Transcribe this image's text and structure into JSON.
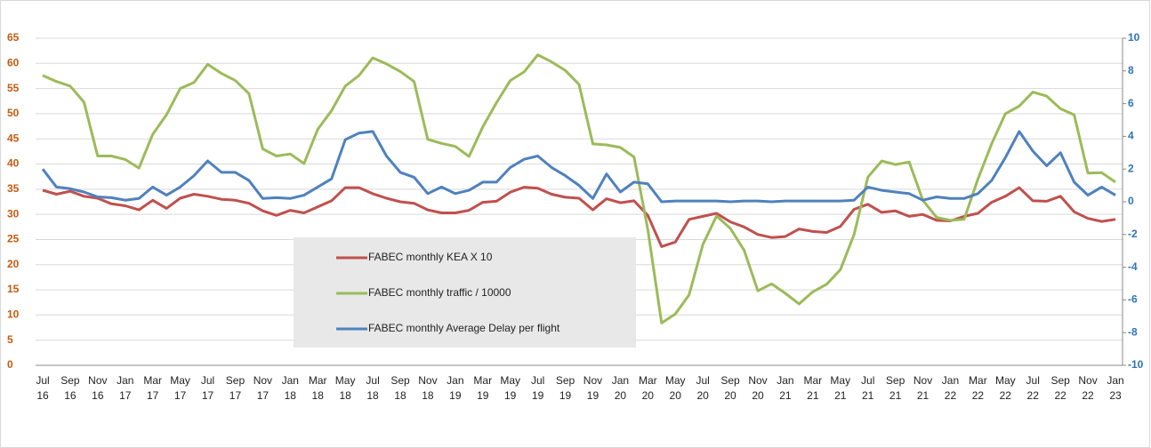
{
  "chart_data": {
    "type": "line",
    "categories": [
      "Jul 16",
      null,
      "Sep 16",
      null,
      "Nov 16",
      null,
      "Jan 17",
      null,
      "Mar 17",
      null,
      "May 17",
      null,
      "Jul 17",
      null,
      "Sep 17",
      null,
      "Nov 17",
      null,
      "Jan 18",
      null,
      "Mar 18",
      null,
      "May 18",
      null,
      "Jul 18",
      null,
      "Sep 18",
      null,
      "Nov 18",
      null,
      "Jan 19",
      null,
      "Mar 19",
      null,
      "May 19",
      null,
      "Jul 19",
      null,
      "Sep 19",
      null,
      "Nov 19",
      null,
      "Jan 20",
      null,
      "Mar 20",
      null,
      "May 20",
      null,
      "Jul 20",
      null,
      "Sep 20",
      null,
      "Nov 20",
      null,
      "Jan 21",
      null,
      "Mar 21",
      null,
      "May 21",
      null,
      "Jul 21",
      null,
      "Sep 21",
      null,
      "Nov 21",
      null,
      "Jan 22",
      null,
      "Mar 22",
      null,
      "May 22",
      null,
      "Jul 22",
      null,
      "Sep 22",
      null,
      "Nov 22",
      null,
      "Jan 23"
    ],
    "series": [
      {
        "name": "FABEC monthly KEA X 10",
        "color": "#c0504d",
        "values": [
          34.8,
          34.0,
          34.6,
          33.6,
          33.2,
          32.1,
          31.7,
          30.9,
          32.8,
          31.2,
          33.2,
          34.0,
          33.6,
          33.0,
          32.8,
          32.2,
          30.7,
          29.8,
          30.8,
          30.3,
          31.5,
          32.7,
          35.3,
          35.3,
          34.1,
          33.2,
          32.5,
          32.2,
          30.9,
          30.3,
          30.3,
          30.8,
          32.4,
          32.6,
          34.4,
          35.4,
          35.2,
          34.0,
          33.4,
          33.2,
          30.9,
          33.1,
          32.3,
          32.7,
          29.8,
          23.6,
          24.5,
          29.0,
          29.6,
          30.2,
          28.5,
          27.5,
          26.0,
          25.4,
          25.6,
          27.1,
          26.6,
          26.4,
          27.6,
          31.0,
          32.0,
          30.4,
          30.7,
          29.6,
          30.0,
          28.8,
          28.7,
          29.6,
          30.2,
          32.4,
          33.6,
          35.3,
          32.7,
          32.6,
          33.6,
          30.5,
          29.2,
          28.6,
          29.0
        ]
      },
      {
        "name": "FABEC monthly traffic / 10000",
        "color": "#9bbb59",
        "values": [
          57.6,
          56.4,
          55.5,
          52.3,
          41.6,
          41.6,
          40.9,
          39.2,
          45.9,
          49.8,
          55.0,
          56.2,
          59.8,
          58.0,
          56.6,
          54.0,
          43.0,
          41.6,
          42.0,
          40.1,
          46.9,
          50.6,
          55.5,
          57.6,
          61.1,
          59.9,
          58.4,
          56.4,
          44.9,
          44.1,
          43.5,
          41.5,
          47.4,
          52.2,
          56.6,
          58.3,
          61.7,
          60.3,
          58.6,
          55.8,
          44.0,
          43.8,
          43.3,
          41.4,
          27.0,
          8.4,
          10.2,
          14.0,
          24.0,
          29.7,
          27.2,
          22.9,
          14.8,
          16.2,
          14.3,
          12.2,
          14.6,
          16.1,
          19.0,
          26.0,
          37.4,
          40.6,
          39.9,
          40.4,
          32.8,
          29.4,
          28.8,
          29.0,
          37.0,
          44.0,
          50.0,
          51.5,
          54.3,
          53.5,
          51.0,
          49.8,
          38.2,
          38.3,
          36.4
        ]
      },
      {
        "name": "FABEC monthly Average Delay per flight",
        "color": "#4f81bd",
        "axis": "y2",
        "values": [
          2.0,
          0.9,
          0.8,
          0.6,
          0.3,
          0.25,
          0.1,
          0.2,
          0.9,
          0.4,
          0.9,
          1.6,
          2.5,
          1.8,
          1.8,
          1.3,
          0.2,
          0.25,
          0.2,
          0.4,
          0.9,
          1.4,
          3.8,
          4.2,
          4.3,
          2.8,
          1.8,
          1.5,
          0.5,
          0.9,
          0.5,
          0.7,
          1.2,
          1.2,
          2.1,
          2.6,
          2.8,
          2.1,
          1.6,
          1.0,
          0.2,
          1.7,
          0.6,
          1.2,
          1.1,
          0.0,
          0.05,
          0.05,
          0.05,
          0.05,
          0.0,
          0.05,
          0.05,
          0.0,
          0.05,
          0.05,
          0.05,
          0.05,
          0.05,
          0.1,
          0.9,
          0.7,
          0.6,
          0.5,
          0.1,
          0.3,
          0.2,
          0.2,
          0.5,
          1.3,
          2.7,
          4.3,
          3.1,
          2.2,
          3.0,
          1.2,
          0.4,
          0.9,
          0.4
        ]
      }
    ],
    "ylim": [
      0,
      65
    ],
    "yticks": [
      0,
      5,
      10,
      15,
      20,
      25,
      30,
      35,
      40,
      45,
      50,
      55,
      60,
      65
    ],
    "ycolor": "#c55a11",
    "y2lim": [
      -10,
      10
    ],
    "y2ticks": [
      -10,
      -8,
      -6,
      -4,
      -2,
      0,
      2,
      4,
      6,
      8,
      10
    ],
    "y2color": "#2e75b6",
    "grid": true
  }
}
